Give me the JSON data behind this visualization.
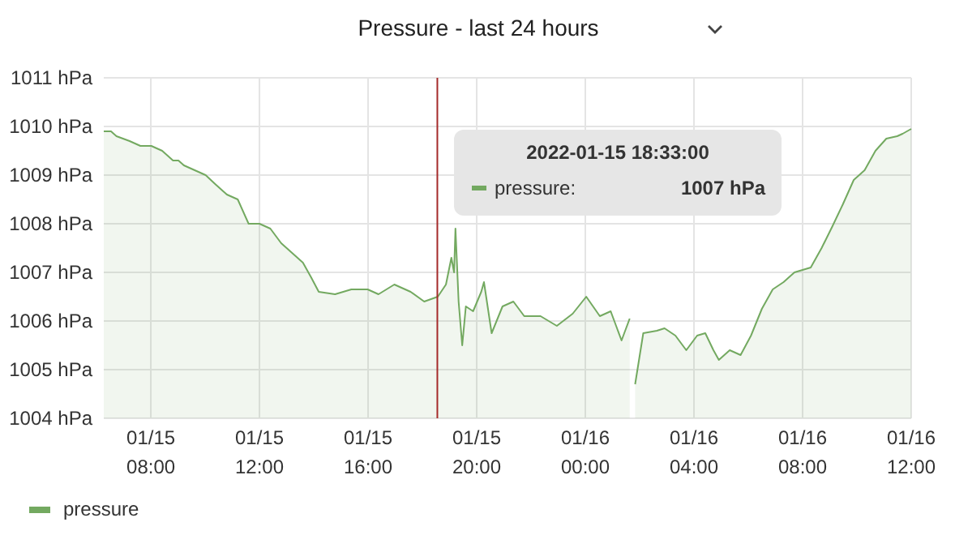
{
  "chart_data": {
    "type": "area",
    "title": "Pressure - last 24 hours",
    "x": [
      "2022-01-15T06:16",
      "2022-01-15T06:32",
      "2022-01-15T06:44",
      "2022-01-15T07:13",
      "2022-01-15T07:37",
      "2022-01-15T08:01",
      "2022-01-15T08:25",
      "2022-01-15T08:49",
      "2022-01-15T09:01",
      "2022-01-15T09:13",
      "2022-01-15T09:37",
      "2022-01-15T10:01",
      "2022-01-15T10:24",
      "2022-01-15T10:48",
      "2022-01-15T11:12",
      "2022-01-15T11:36",
      "2022-01-15T12:00",
      "2022-01-15T12:24",
      "2022-01-15T12:48",
      "2022-01-15T13:12",
      "2022-01-15T13:36",
      "2022-01-15T13:54",
      "2022-01-15T14:11",
      "2022-01-15T14:47",
      "2022-01-15T15:23",
      "2022-01-15T15:59",
      "2022-01-15T16:23",
      "2022-01-15T16:58",
      "2022-01-15T17:34",
      "2022-01-15T18:04",
      "2022-01-15T18:34",
      "2022-01-15T18:52",
      "2022-01-15T19:04",
      "2022-01-15T19:10",
      "2022-01-15T19:13",
      "2022-01-15T19:20",
      "2022-01-15T19:28",
      "2022-01-15T19:36",
      "2022-01-15T19:52",
      "2022-01-15T20:10",
      "2022-01-15T20:16",
      "2022-01-15T20:33",
      "2022-01-15T20:57",
      "2022-01-15T21:21",
      "2022-01-15T21:45",
      "2022-01-15T22:21",
      "2022-01-15T22:57",
      "2022-01-15T23:32",
      "2022-01-16T00:02",
      "2022-01-16T00:32",
      "2022-01-16T00:56",
      "2022-01-16T01:08",
      "2022-01-16T01:20",
      "2022-01-16T01:38",
      "2022-01-16T01:45",
      "2022-01-16T01:50",
      "2022-01-16T02:08",
      "2022-01-16T02:38",
      "2022-01-16T02:55",
      "2022-01-16T03:19",
      "2022-01-16T03:43",
      "2022-01-16T04:07",
      "2022-01-16T04:25",
      "2022-01-16T04:43",
      "2022-01-16T04:55",
      "2022-01-16T05:19",
      "2022-01-16T05:43",
      "2022-01-16T06:06",
      "2022-01-16T06:30",
      "2022-01-16T06:54",
      "2022-01-16T07:18",
      "2022-01-16T07:42",
      "2022-01-16T08:18",
      "2022-01-16T08:42",
      "2022-01-16T09:06",
      "2022-01-16T09:29",
      "2022-01-16T09:53",
      "2022-01-16T10:17",
      "2022-01-16T10:41",
      "2022-01-16T11:05",
      "2022-01-16T11:29",
      "2022-01-16T11:41",
      "2022-01-16T12:00"
    ],
    "series": [
      {
        "name": "pressure",
        "color": "#73a960",
        "values": [
          1009.9,
          1009.9,
          1009.8,
          1009.7,
          1009.6,
          1009.6,
          1009.5,
          1009.3,
          1009.3,
          1009.2,
          1009.1,
          1009.0,
          1008.8,
          1008.6,
          1008.5,
          1008.0,
          1008.0,
          1007.9,
          1007.6,
          1007.4,
          1007.2,
          1006.9,
          1006.6,
          1006.55,
          1006.65,
          1006.65,
          1006.55,
          1006.75,
          1006.6,
          1006.4,
          1006.5,
          1006.75,
          1007.3,
          1007.0,
          1007.9,
          1006.4,
          1005.5,
          1006.3,
          1006.2,
          1006.6,
          1006.8,
          1005.75,
          1006.3,
          1006.4,
          1006.1,
          1006.1,
          1005.9,
          1006.15,
          1006.5,
          1006.1,
          1006.2,
          1005.9,
          1005.6,
          1006.05,
          null,
          1004.7,
          1005.75,
          1005.8,
          1005.85,
          1005.7,
          1005.4,
          1005.7,
          1005.75,
          1005.4,
          1005.2,
          1005.4,
          1005.3,
          1005.7,
          1006.25,
          1006.65,
          1006.8,
          1007.0,
          1007.1,
          1007.5,
          1007.95,
          1008.4,
          1008.9,
          1009.1,
          1009.5,
          1009.75,
          1009.8,
          1009.85,
          1009.95
        ]
      }
    ],
    "xlim": [
      "2022-01-15T06:16",
      "2022-01-16T12:00"
    ],
    "xticks": [
      {
        "value": "2022-01-15T08:00",
        "label": "01/15\n08:00"
      },
      {
        "value": "2022-01-15T12:00",
        "label": "01/15\n12:00"
      },
      {
        "value": "2022-01-15T16:00",
        "label": "01/15\n16:00"
      },
      {
        "value": "2022-01-15T20:00",
        "label": "01/15\n20:00"
      },
      {
        "value": "2022-01-16T00:00",
        "label": "01/16\n00:00"
      },
      {
        "value": "2022-01-16T04:00",
        "label": "01/16\n04:00"
      },
      {
        "value": "2022-01-16T08:00",
        "label": "01/16\n08:00"
      },
      {
        "value": "2022-01-16T12:00",
        "label": "01/16\n12:00"
      }
    ],
    "ylim": [
      1004,
      1011
    ],
    "yticks": [
      {
        "value": 1004,
        "label": "1004 hPa"
      },
      {
        "value": 1005,
        "label": "1005 hPa"
      },
      {
        "value": 1006,
        "label": "1006 hPa"
      },
      {
        "value": 1007,
        "label": "1007 hPa"
      },
      {
        "value": 1008,
        "label": "1008 hPa"
      },
      {
        "value": 1009,
        "label": "1009 hPa"
      },
      {
        "value": 1010,
        "label": "1010 hPa"
      },
      {
        "value": 1011,
        "label": "1011 hPa"
      }
    ],
    "ref_lines": [
      {
        "axis": "x",
        "value": "2022-01-15T18:33",
        "color": "#a52a2a"
      }
    ],
    "annotations": [
      "2022-01-15 18:33:00",
      "pressure:",
      "1007 hPa"
    ],
    "grid": true,
    "legend": "bottom left"
  }
}
